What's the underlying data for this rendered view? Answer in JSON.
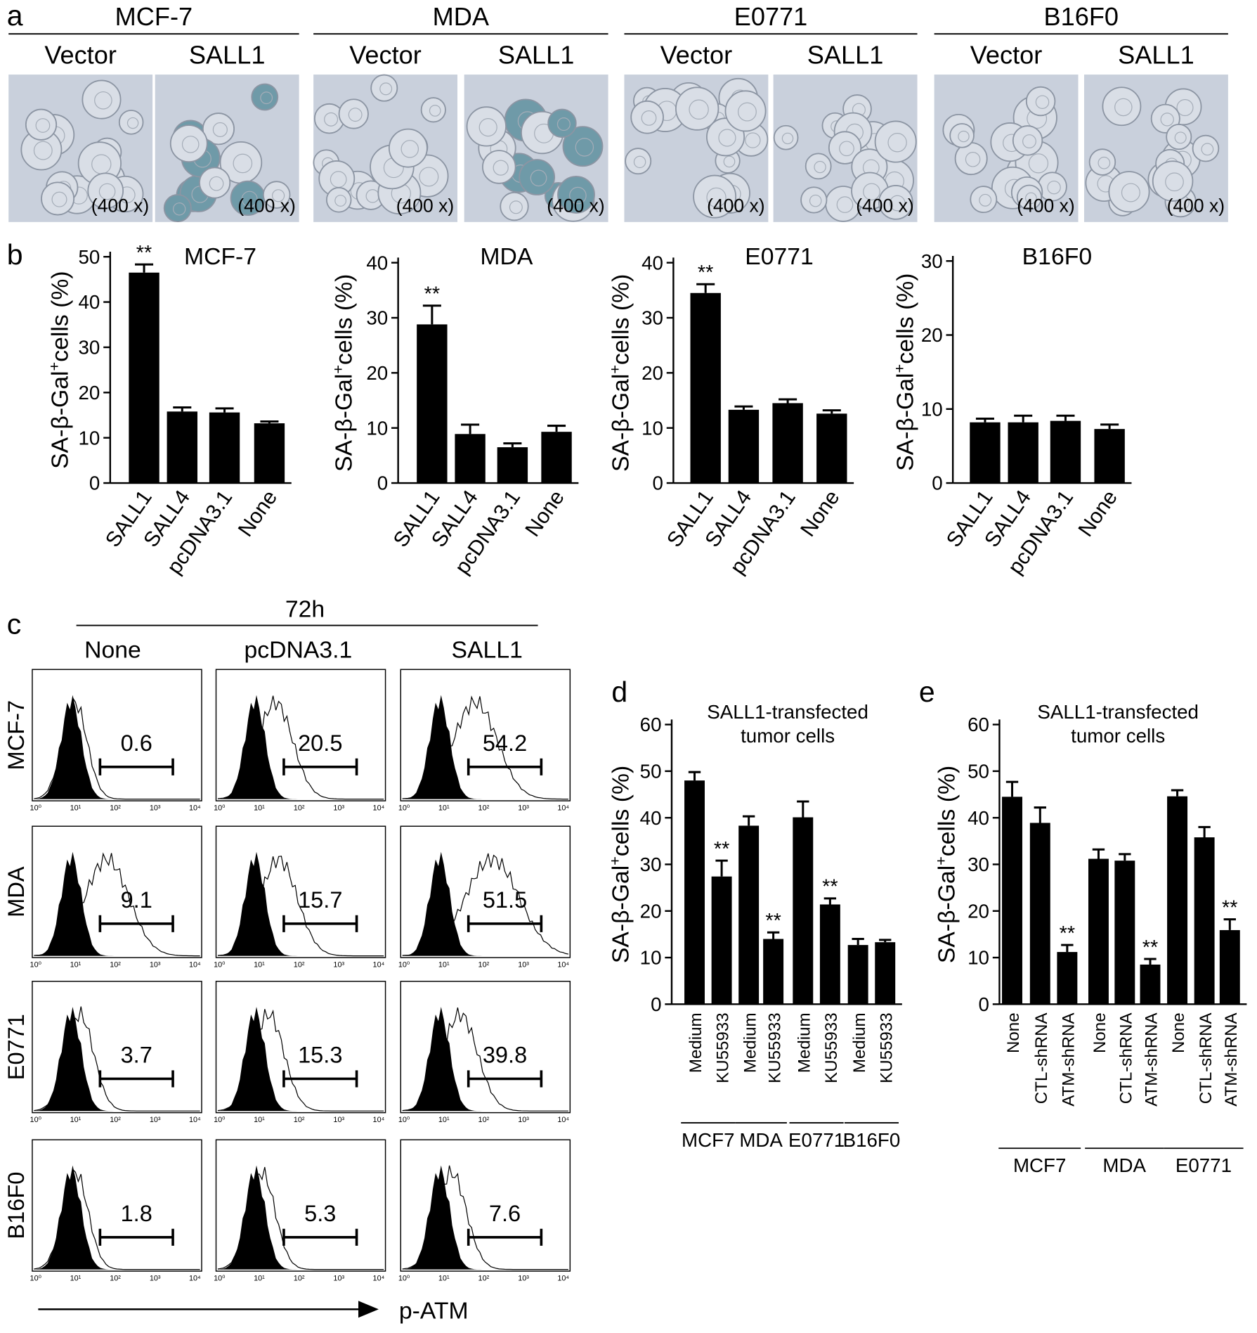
{
  "panel_labels": [
    "a",
    "b",
    "c",
    "d",
    "e"
  ],
  "panel_a": {
    "groups": [
      {
        "name": "MCF-7",
        "conditions": [
          "Vector",
          "SALL1"
        ],
        "magnification": [
          "(400 x)",
          "(400 x)"
        ]
      },
      {
        "name": "MDA",
        "conditions": [
          "Vector",
          "SALL1"
        ],
        "magnification": [
          "(400 x)",
          "(400 x)"
        ]
      },
      {
        "name": "E0771",
        "conditions": [
          "Vector",
          "SALL1"
        ],
        "magnification": [
          "(400 x)",
          "(400 x)"
        ]
      },
      {
        "name": "B16F0",
        "conditions": [
          "Vector",
          "SALL1"
        ],
        "magnification": [
          "(400 x)",
          "(400 x)"
        ]
      }
    ]
  },
  "chart_data": [
    {
      "type": "bar",
      "title": "MCF-7",
      "categories": [
        "SALL1",
        "SALL4",
        "pcDNA3.1",
        "None"
      ],
      "values": [
        46.5,
        15.8,
        15.6,
        13.2
      ],
      "errors": [
        1.8,
        0.9,
        0.9,
        0.4
      ],
      "significance": [
        "**",
        null,
        null,
        null
      ],
      "ylim": [
        0,
        50
      ],
      "yticks": [
        0,
        10,
        20,
        30,
        40,
        50
      ],
      "ylabel": [
        "SA-β-Gal",
        "+",
        "cells (%)"
      ],
      "color": "#000000"
    },
    {
      "type": "bar",
      "title": "MDA",
      "categories": [
        "SALL1",
        "SALL4",
        "pcDNA3.1",
        "None"
      ],
      "values": [
        28.8,
        8.9,
        6.5,
        9.3
      ],
      "errors": [
        3.4,
        1.7,
        0.7,
        1.1
      ],
      "significance": [
        "**",
        null,
        null,
        null
      ],
      "ylim": [
        0,
        40
      ],
      "yticks": [
        0,
        10,
        20,
        30,
        40
      ],
      "ylabel": [
        "SA-β-Gal",
        "+",
        "cells (%)"
      ],
      "color": "#000000"
    },
    {
      "type": "bar",
      "title": "E0771",
      "categories": [
        "SALL1",
        "SALL4",
        "pcDNA3.1",
        "None"
      ],
      "values": [
        34.5,
        13.3,
        14.5,
        12.6
      ],
      "errors": [
        1.6,
        0.6,
        0.7,
        0.6
      ],
      "significance": [
        "**",
        null,
        null,
        null
      ],
      "ylim": [
        0,
        40
      ],
      "yticks": [
        0,
        10,
        20,
        30,
        40
      ],
      "ylabel": [
        "SA-β-Gal",
        "+",
        "cells (%)"
      ],
      "color": "#000000"
    },
    {
      "type": "bar",
      "title": "B16F0",
      "categories": [
        "SALL1",
        "SALL4",
        "pcDNA3.1",
        "None"
      ],
      "values": [
        8.2,
        8.2,
        8.4,
        7.3
      ],
      "errors": [
        0.5,
        0.9,
        0.7,
        0.6
      ],
      "significance": [
        null,
        null,
        null,
        null
      ],
      "ylim": [
        0,
        30
      ],
      "yticks": [
        0,
        10,
        20,
        30
      ],
      "ylabel": [
        "SA-β-Gal",
        "+",
        "cells (%)"
      ],
      "color": "#000000"
    },
    {
      "type": "bar",
      "title_lines": [
        "SALL1-transfected",
        "tumor cells"
      ],
      "categories": [
        "Medium",
        "KU55933",
        "Medium",
        "KU55933",
        "Medium",
        "KU55933",
        "Medium",
        "KU55933"
      ],
      "group_labels": [
        "MCF7",
        "MDA",
        "E0771",
        "B16F0"
      ],
      "values": [
        48.0,
        27.4,
        38.3,
        14.0,
        40.1,
        21.4,
        12.7,
        13.3
      ],
      "errors": [
        1.8,
        3.4,
        2.0,
        1.4,
        3.4,
        1.3,
        1.3,
        0.5
      ],
      "significance": [
        null,
        "**",
        null,
        "**",
        null,
        "**",
        null,
        null
      ],
      "ylim": [
        0,
        60
      ],
      "yticks": [
        0,
        10,
        20,
        30,
        40,
        50,
        60
      ],
      "ylabel": [
        "SA-β-Gal",
        "+",
        "cells (%)"
      ],
      "color": "#000000"
    },
    {
      "type": "bar",
      "title_lines": [
        "SALL1-transfected",
        "tumor cells"
      ],
      "categories": [
        "None",
        "CTL-shRNA",
        "ATM-shRNA",
        "None",
        "CTL-shRNA",
        "ATM-shRNA",
        "None",
        "CTL-shRNA",
        "ATM-shRNA"
      ],
      "group_labels": [
        "MCF7",
        "MDA",
        "E0771"
      ],
      "values": [
        44.5,
        38.9,
        11.2,
        31.2,
        30.8,
        8.5,
        44.6,
        35.8,
        15.9
      ],
      "errors": [
        3.2,
        3.3,
        1.5,
        2.0,
        1.4,
        1.2,
        1.3,
        2.2,
        2.3
      ],
      "significance": [
        null,
        null,
        "**",
        null,
        null,
        "**",
        null,
        null,
        "**"
      ],
      "ylim": [
        0,
        60
      ],
      "yticks": [
        0,
        10,
        20,
        30,
        40,
        50,
        60
      ],
      "ylabel": [
        "SA-β-Gal",
        "+",
        "cells (%)"
      ],
      "color": "#000000"
    }
  ],
  "panel_c": {
    "header": "72h",
    "columns": [
      "None",
      "pcDNA3.1",
      "SALL1"
    ],
    "rows": [
      "MCF-7",
      "MDA",
      "E0771",
      "B16F0"
    ],
    "gates": [
      [
        0.6,
        20.5,
        54.2
      ],
      [
        9.1,
        15.7,
        51.5
      ],
      [
        3.7,
        15.3,
        39.8
      ],
      [
        1.8,
        5.3,
        7.6
      ]
    ],
    "xticks": [
      "10⁰",
      "10¹",
      "10²",
      "10³",
      "10⁴"
    ],
    "xlabel": "p-ATM"
  }
}
